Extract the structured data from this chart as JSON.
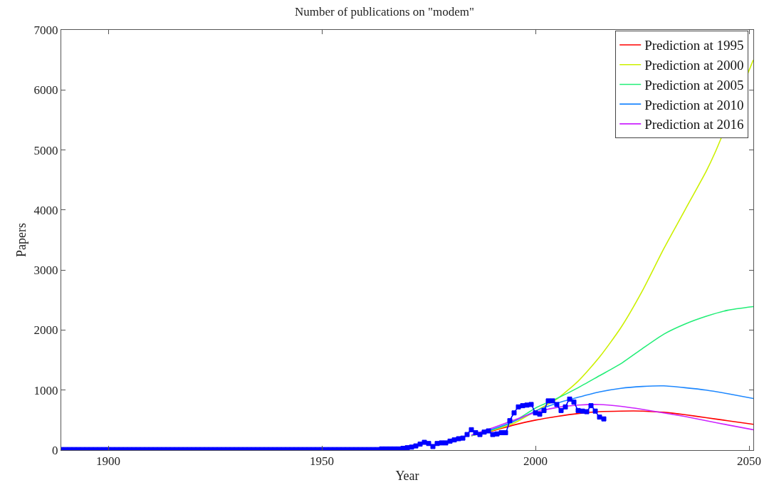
{
  "chart_data": {
    "type": "line",
    "title": "Number of publications on \"modem\"",
    "xlabel": "Year",
    "ylabel": "Papers",
    "xlim": [
      1889,
      2051
    ],
    "xticks": [
      1900,
      1950,
      2000,
      2050
    ],
    "ylim": [
      0,
      7000
    ],
    "yticks": [
      0,
      1000,
      2000,
      3000,
      4000,
      5000,
      6000,
      7000
    ],
    "grid": false,
    "legend": "top right",
    "series": [
      {
        "color": "#0000ff",
        "marker": "square",
        "x": [
          1889,
          1890,
          1891,
          1892,
          1893,
          1894,
          1895,
          1896,
          1897,
          1898,
          1899,
          1900,
          1901,
          1902,
          1903,
          1904,
          1905,
          1906,
          1907,
          1908,
          1909,
          1910,
          1911,
          1912,
          1913,
          1914,
          1915,
          1916,
          1917,
          1918,
          1919,
          1920,
          1921,
          1922,
          1923,
          1924,
          1925,
          1926,
          1927,
          1928,
          1929,
          1930,
          1931,
          1932,
          1933,
          1934,
          1935,
          1936,
          1937,
          1938,
          1939,
          1940,
          1941,
          1942,
          1943,
          1944,
          1945,
          1946,
          1947,
          1948,
          1949,
          1950,
          1951,
          1952,
          1953,
          1954,
          1955,
          1956,
          1957,
          1958,
          1959,
          1960,
          1961,
          1962,
          1963,
          1964,
          1965,
          1966,
          1967,
          1968,
          1969,
          1970,
          1971,
          1972,
          1973,
          1974,
          1975,
          1976,
          1977,
          1978,
          1979,
          1980,
          1981,
          1982,
          1983,
          1984,
          1985,
          1986,
          1987,
          1988,
          1989,
          1990,
          1991,
          1992,
          1993,
          1994,
          1995,
          1996,
          1997,
          1998,
          1999,
          2000,
          2001,
          2002,
          2003,
          2004,
          2005,
          2006,
          2007,
          2008,
          2009,
          2010,
          2011,
          2012,
          2013,
          2014,
          2015,
          2016
        ],
        "values": [
          10,
          10,
          10,
          10,
          10,
          10,
          10,
          10,
          10,
          10,
          10,
          10,
          10,
          10,
          10,
          10,
          10,
          10,
          10,
          10,
          10,
          10,
          10,
          10,
          10,
          10,
          10,
          10,
          10,
          10,
          10,
          10,
          10,
          10,
          10,
          10,
          10,
          10,
          10,
          10,
          10,
          10,
          10,
          10,
          10,
          10,
          10,
          10,
          10,
          10,
          10,
          10,
          10,
          10,
          10,
          10,
          10,
          10,
          10,
          10,
          10,
          10,
          10,
          10,
          10,
          10,
          10,
          10,
          10,
          10,
          10,
          10,
          10,
          10,
          10,
          20,
          20,
          20,
          20,
          20,
          30,
          40,
          50,
          70,
          100,
          130,
          110,
          60,
          110,
          120,
          120,
          150,
          170,
          190,
          200,
          260,
          340,
          290,
          260,
          300,
          320,
          260,
          270,
          290,
          290,
          490,
          620,
          720,
          740,
          750,
          760,
          620,
          600,
          660,
          820,
          820,
          760,
          660,
          720,
          850,
          800,
          660,
          650,
          640,
          740,
          650,
          550,
          520
        ]
      },
      {
        "name": "Prediction at 1995",
        "color": "#ff0000",
        "x": [
          1985,
          1990,
          1995,
          2000,
          2005,
          2010,
          2015,
          2020,
          2025,
          2030,
          2035,
          2040,
          2045,
          2051
        ],
        "values": [
          240,
          320,
          420,
          500,
          560,
          610,
          640,
          650,
          650,
          630,
          590,
          540,
          490,
          430
        ]
      },
      {
        "name": "Prediction at 2000",
        "color": "#ccf000",
        "x": [
          1985,
          1990,
          1995,
          2000,
          2005,
          2010,
          2015,
          2020,
          2025,
          2030,
          2035,
          2040,
          2042,
          2051
        ],
        "values": [
          240,
          330,
          450,
          650,
          850,
          1150,
          1550,
          2040,
          2650,
          3350,
          4000,
          4650,
          4950,
          6500
        ]
      },
      {
        "name": "Prediction at 2005",
        "color": "#22ee77",
        "x": [
          1985,
          1990,
          1995,
          2000,
          2005,
          2010,
          2015,
          2020,
          2025,
          2030,
          2035,
          2040,
          2045,
          2051
        ],
        "values": [
          240,
          340,
          480,
          700,
          860,
          1040,
          1240,
          1440,
          1690,
          1930,
          2100,
          2230,
          2330,
          2390
        ]
      },
      {
        "name": "Prediction at 2010",
        "color": "#1e88ff",
        "x": [
          1985,
          1990,
          1995,
          2000,
          2005,
          2010,
          2015,
          2020,
          2025,
          2030,
          2035,
          2040,
          2045,
          2051
        ],
        "values": [
          250,
          350,
          480,
          650,
          780,
          880,
          970,
          1030,
          1060,
          1070,
          1040,
          1000,
          940,
          860
        ]
      },
      {
        "name": "Prediction at 2016",
        "color": "#cc22ff",
        "x": [
          1985,
          1990,
          1995,
          2000,
          2005,
          2010,
          2015,
          2020,
          2025,
          2030,
          2035,
          2040,
          2045,
          2051
        ],
        "values": [
          250,
          370,
          500,
          630,
          710,
          750,
          760,
          730,
          680,
          620,
          560,
          490,
          420,
          340
        ]
      }
    ]
  }
}
